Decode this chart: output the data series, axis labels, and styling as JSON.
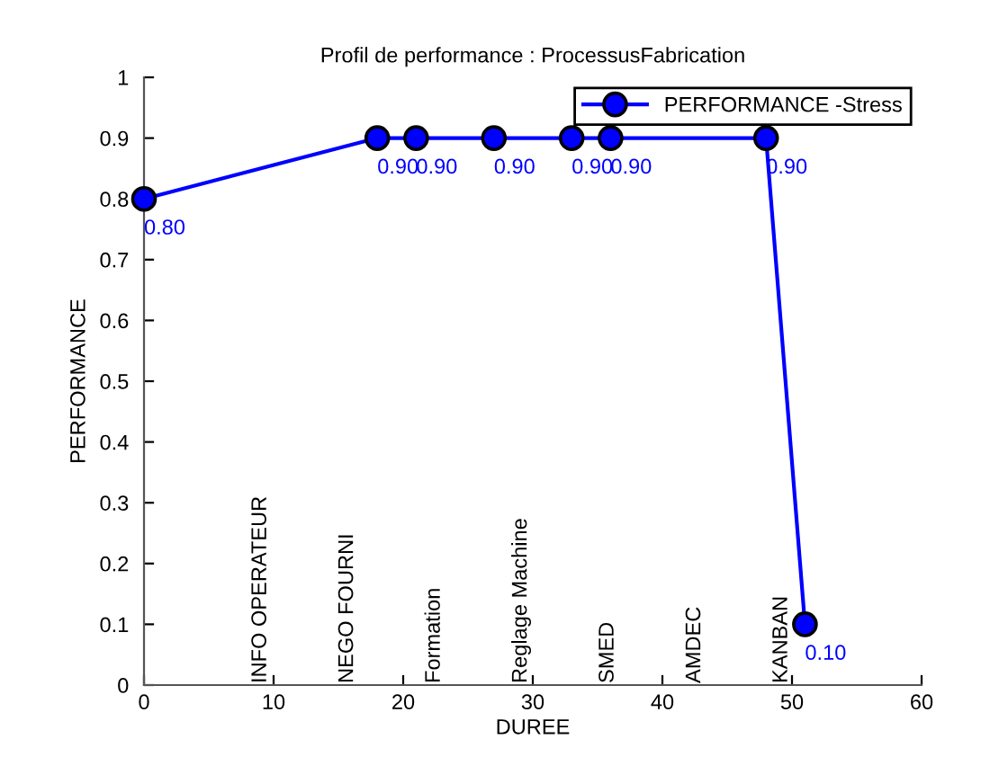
{
  "chart_data": {
    "type": "line",
    "title": "Profil de performance : ProcessusFabrication",
    "xlabel": "DUREE",
    "ylabel": "PERFORMANCE",
    "x": [
      0,
      18,
      21,
      27,
      33,
      36,
      48,
      51
    ],
    "series": [
      {
        "name": "PERFORMANCE -Stress",
        "color": "#0000ff",
        "values": [
          0.8,
          0.9,
          0.9,
          0.9,
          0.9,
          0.9,
          0.9,
          0.1
        ],
        "value_labels": [
          "0.80",
          "0.90",
          "0.90",
          "0.90",
          "0.90",
          "0.90",
          "0.90",
          "0.10"
        ]
      }
    ],
    "annotations": [
      "INFO OPERATEUR",
      "NEGO FOURNI",
      "Formation",
      "Reglage Machine",
      "SMED",
      "AMDEC",
      "KANBAN"
    ],
    "xlim": [
      0,
      60
    ],
    "xticks": [
      0,
      10,
      20,
      30,
      40,
      50,
      60
    ],
    "ylim": [
      0,
      1
    ],
    "yticks": [
      0,
      0.1,
      0.2,
      0.3,
      0.4,
      0.5,
      0.6,
      0.7,
      0.8,
      0.9,
      1
    ],
    "marker": "circle",
    "line_style": "solid",
    "legend": "top right",
    "grid": false
  }
}
